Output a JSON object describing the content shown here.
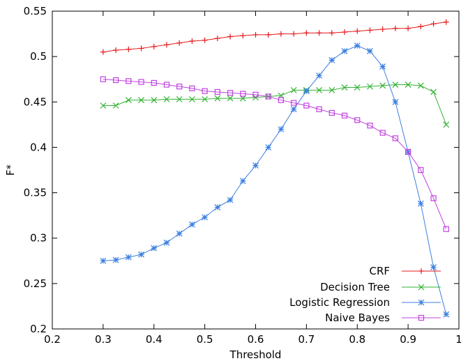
{
  "chart_data": {
    "type": "line",
    "title": "",
    "xlabel": "Threshold",
    "ylabel": "F*",
    "xlim": [
      0.2,
      1.0
    ],
    "ylim": [
      0.2,
      0.55
    ],
    "x_ticks": [
      0.2,
      0.3,
      0.4,
      0.5,
      0.6,
      0.7,
      0.8,
      0.9,
      1.0
    ],
    "x_tick_labels": [
      "0.2",
      "0.3",
      "0.4",
      "0.5",
      "0.6",
      "0.7",
      "0.8",
      "0.9",
      "1"
    ],
    "y_ticks": [
      0.2,
      0.25,
      0.3,
      0.35,
      0.4,
      0.45,
      0.5,
      0.55
    ],
    "y_tick_labels": [
      "0.2",
      "0.25",
      "0.3",
      "0.35",
      "0.4",
      "0.45",
      "0.5",
      "0.55"
    ],
    "grid": false,
    "legend_position": "bottom-right",
    "x": [
      0.3,
      0.325,
      0.35,
      0.375,
      0.4,
      0.425,
      0.45,
      0.475,
      0.5,
      0.525,
      0.55,
      0.575,
      0.6,
      0.625,
      0.65,
      0.675,
      0.7,
      0.725,
      0.75,
      0.775,
      0.8,
      0.825,
      0.85,
      0.875,
      0.9,
      0.925,
      0.95,
      0.975
    ],
    "series": [
      {
        "name": "CRF",
        "color": "#e41a1c",
        "marker": "plus",
        "values": [
          0.505,
          0.507,
          0.508,
          0.509,
          0.511,
          0.513,
          0.515,
          0.517,
          0.518,
          0.52,
          0.522,
          0.523,
          0.524,
          0.524,
          0.525,
          0.525,
          0.526,
          0.526,
          0.526,
          0.527,
          0.528,
          0.529,
          0.53,
          0.531,
          0.531,
          0.533,
          0.536,
          0.538
        ]
      },
      {
        "name": "Decision Tree",
        "color": "#33b233",
        "marker": "cross",
        "values": [
          0.446,
          0.446,
          0.452,
          0.452,
          0.452,
          0.453,
          0.453,
          0.453,
          0.453,
          0.454,
          0.454,
          0.454,
          0.455,
          0.456,
          0.457,
          0.463,
          0.463,
          0.463,
          0.463,
          0.466,
          0.466,
          0.467,
          0.468,
          0.469,
          0.469,
          0.468,
          0.461,
          0.425
        ]
      },
      {
        "name": "Logistic Regression",
        "color": "#3b7fe0",
        "marker": "star",
        "values": [
          0.275,
          0.276,
          0.279,
          0.282,
          0.289,
          0.295,
          0.305,
          0.315,
          0.323,
          0.334,
          0.342,
          0.363,
          0.38,
          0.4,
          0.42,
          0.442,
          0.462,
          0.479,
          0.496,
          0.506,
          0.512,
          0.506,
          0.489,
          0.45,
          0.395,
          0.338,
          0.268,
          0.216
        ]
      },
      {
        "name": "Naive Bayes",
        "color": "#c040e0",
        "marker": "square",
        "values": [
          0.475,
          0.474,
          0.473,
          0.472,
          0.471,
          0.469,
          0.467,
          0.465,
          0.462,
          0.461,
          0.46,
          0.459,
          0.458,
          0.456,
          0.452,
          0.449,
          0.446,
          0.442,
          0.438,
          0.435,
          0.43,
          0.424,
          0.416,
          0.41,
          0.395,
          0.375,
          0.344,
          0.31
        ]
      }
    ]
  }
}
